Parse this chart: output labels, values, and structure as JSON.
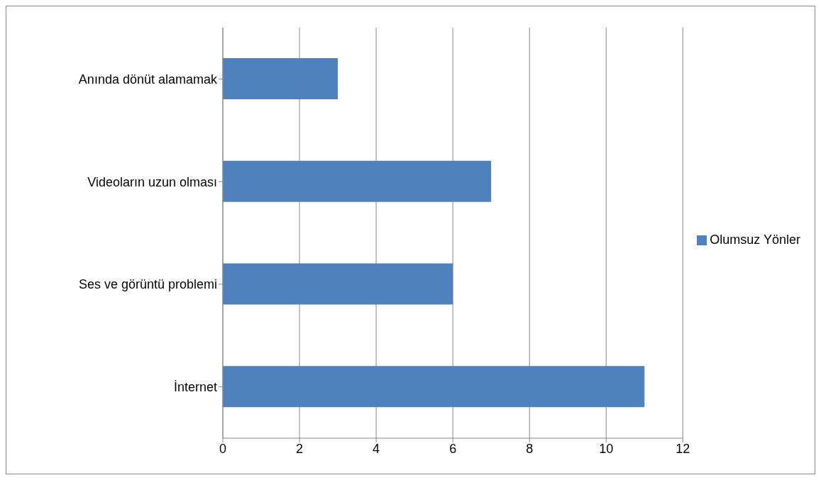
{
  "chart_data": {
    "type": "bar",
    "orientation": "horizontal",
    "categories": [
      "Anında dönüt alamamak",
      "Videoların uzun olması",
      "Ses ve görüntü problemi",
      "İnternet"
    ],
    "series": [
      {
        "name": "Olumsuz Yönler",
        "color": "#4f81bd",
        "values": [
          3,
          7,
          6,
          11
        ]
      }
    ],
    "xlim": [
      0,
      12
    ],
    "xticks": [
      0,
      2,
      4,
      6,
      8,
      10,
      12
    ],
    "grid": "x",
    "legend": "right"
  }
}
